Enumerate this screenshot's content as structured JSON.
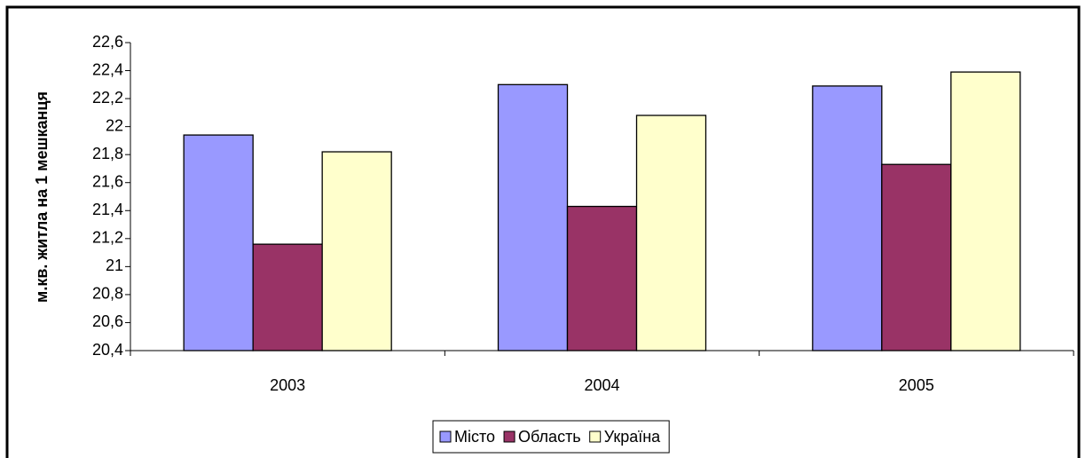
{
  "chart_data": {
    "type": "bar",
    "y_label": "м.кв. житла на 1 мешканця",
    "categories": [
      "2003",
      "2004",
      "2005"
    ],
    "series": [
      {
        "name": "Місто",
        "color": "#9999ff",
        "values": [
          21.94,
          22.3,
          22.29
        ]
      },
      {
        "name": "Область",
        "color": "#993366",
        "values": [
          21.16,
          21.43,
          21.73
        ]
      },
      {
        "name": "Україна",
        "color": "#ffffcc",
        "values": [
          21.82,
          22.08,
          22.39
        ]
      }
    ],
    "ylim": [
      20.4,
      22.6
    ],
    "yticks": [
      {
        "value": 20.4,
        "label": "20,4"
      },
      {
        "value": 20.6,
        "label": "20,6"
      },
      {
        "value": 20.8,
        "label": "20,8"
      },
      21,
      {
        "value": 21.2,
        "label": "21,2"
      },
      {
        "value": 21.4,
        "label": "21,4"
      },
      {
        "value": 21.6,
        "label": "21,6"
      },
      {
        "value": 21.8,
        "label": "21,8"
      },
      22,
      {
        "value": 22.2,
        "label": "22,2"
      },
      {
        "value": 22.4,
        "label": "22,4"
      },
      {
        "value": 22.6,
        "label": "22,6"
      }
    ],
    "grid": false,
    "legend": "bottom"
  }
}
